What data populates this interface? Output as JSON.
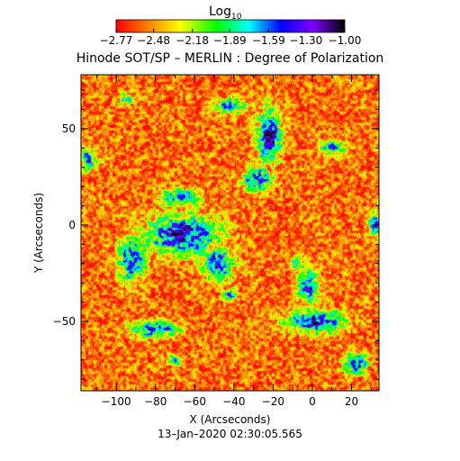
{
  "chart_data": {
    "type": "heatmap",
    "title": "Hinode SOT/SP – MERLIN : Degree of Polarization",
    "xlabel": "X (Arcseconds)",
    "ylabel": "Y (Arcseconds)",
    "timestamp": "13–Jan–2020 02:30:05.565",
    "xlim": [
      -118,
      34
    ],
    "ylim": [
      -86,
      78
    ],
    "x_ticks": [
      -100,
      -80,
      -60,
      -40,
      -20,
      0,
      20
    ],
    "x_tick_labels": [
      "−100",
      "−80",
      "−60",
      "−40",
      "−20",
      "0",
      "20"
    ],
    "y_ticks": [
      50,
      0,
      -50
    ],
    "y_tick_labels": [
      "50",
      "0",
      "−50"
    ],
    "grid": false,
    "colorbar": {
      "title_base": "Log",
      "title_subscript": "10",
      "range": [
        -2.77,
        -1.0
      ],
      "ticks": [
        -2.77,
        -2.48,
        -2.18,
        -1.89,
        -1.59,
        -1.3,
        -1.0
      ],
      "tick_labels": [
        "−2.77",
        "−2.48",
        "−2.18",
        "−1.89",
        "−1.59",
        "−1.30",
        "−1.00"
      ],
      "colormap": [
        "#ff0000",
        "#ff7f00",
        "#ffff00",
        "#00ff00",
        "#00ffff",
        "#0000ff",
        "#7f00ff",
        "#000000"
      ]
    },
    "background_value": -2.55,
    "features": [
      {
        "name": "central-network-cluster",
        "x": -66,
        "y": -5,
        "rx": 22,
        "ry": 12,
        "peak": -1.05
      },
      {
        "name": "central-network-left-arm",
        "x": -92,
        "y": -18,
        "rx": 8,
        "ry": 14,
        "peak": -1.25
      },
      {
        "name": "central-network-right-arm",
        "x": -48,
        "y": -20,
        "rx": 9,
        "ry": 10,
        "peak": -1.3
      },
      {
        "name": "central-network-top",
        "x": -68,
        "y": 14,
        "rx": 12,
        "ry": 6,
        "peak": -1.45
      },
      {
        "name": "upper-right-network",
        "x": -22,
        "y": 46,
        "rx": 7,
        "ry": 16,
        "peak": -1.1
      },
      {
        "name": "upper-right-network-lower",
        "x": -28,
        "y": 24,
        "rx": 9,
        "ry": 7,
        "peak": -1.3
      },
      {
        "name": "upper-right-network-top",
        "x": -42,
        "y": 62,
        "rx": 10,
        "ry": 5,
        "peak": -1.6
      },
      {
        "name": "top-right-spur",
        "x": 10,
        "y": 40,
        "rx": 8,
        "ry": 4,
        "peak": -1.6
      },
      {
        "name": "lower-left-network",
        "x": -80,
        "y": -54,
        "rx": 14,
        "ry": 5,
        "peak": -1.3
      },
      {
        "name": "lower-right-network",
        "x": 2,
        "y": -50,
        "rx": 18,
        "ry": 7,
        "peak": -1.25
      },
      {
        "name": "lower-right-arm",
        "x": -2,
        "y": -32,
        "rx": 6,
        "ry": 10,
        "peak": -1.4
      },
      {
        "name": "bottom-right-patch",
        "x": 22,
        "y": -72,
        "rx": 7,
        "ry": 6,
        "peak": -1.2
      },
      {
        "name": "left-edge-patch",
        "x": -114,
        "y": 34,
        "rx": 5,
        "ry": 6,
        "peak": -1.4
      },
      {
        "name": "right-edge-patch",
        "x": 32,
        "y": 0,
        "rx": 4,
        "ry": 8,
        "peak": -1.5
      },
      {
        "name": "small-center-dot",
        "x": -42,
        "y": -36,
        "rx": 4,
        "ry": 4,
        "peak": -1.5
      },
      {
        "name": "lower-left-dot",
        "x": -70,
        "y": -70,
        "rx": 5,
        "ry": 4,
        "peak": -1.7
      },
      {
        "name": "top-left-speckle",
        "x": -95,
        "y": 65,
        "rx": 6,
        "ry": 4,
        "peak": -1.9
      },
      {
        "name": "mid-right-speckle",
        "x": -8,
        "y": -20,
        "rx": 5,
        "ry": 4,
        "peak": -1.8
      }
    ]
  }
}
